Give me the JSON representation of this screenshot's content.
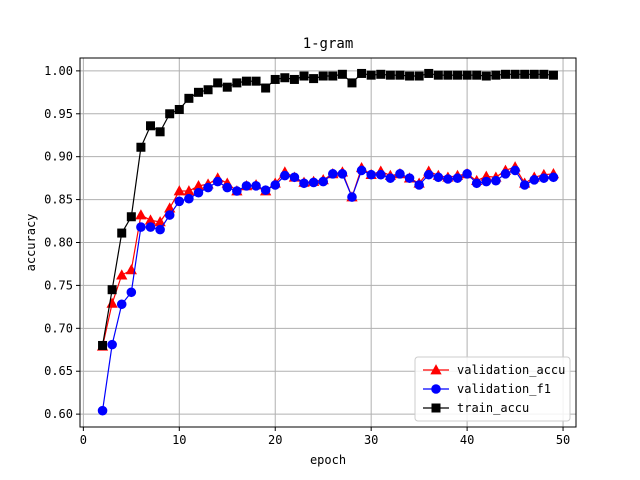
{
  "chart_data": {
    "type": "line",
    "title": "1-gram",
    "xlabel": "epoch",
    "ylabel": "accuracy",
    "xlim": [
      -0.35,
      51.35
    ],
    "ylim": [
      0.585,
      1.015
    ],
    "xticks": [
      0,
      10,
      20,
      30,
      40,
      50
    ],
    "yticks": [
      0.6,
      0.65,
      0.7,
      0.75,
      0.8,
      0.85,
      0.9,
      0.95,
      1.0
    ],
    "ytick_labels": [
      "0.60",
      "0.65",
      "0.70",
      "0.75",
      "0.80",
      "0.85",
      "0.90",
      "0.95",
      "1.00"
    ],
    "grid": true,
    "legend_position": "lower-right",
    "x": [
      2,
      3,
      4,
      5,
      6,
      7,
      8,
      9,
      10,
      11,
      12,
      13,
      14,
      15,
      16,
      17,
      18,
      19,
      20,
      21,
      22,
      23,
      24,
      25,
      26,
      27,
      28,
      29,
      30,
      31,
      32,
      33,
      34,
      35,
      36,
      37,
      38,
      39,
      40,
      41,
      42,
      43,
      44,
      45,
      46,
      47,
      48,
      49
    ],
    "series": [
      {
        "name": "validation_accu",
        "color": "#ff0000",
        "marker": "triangle",
        "values": [
          0.679,
          0.729,
          0.762,
          0.768,
          0.832,
          0.826,
          0.824,
          0.84,
          0.86,
          0.86,
          0.866,
          0.868,
          0.875,
          0.869,
          0.86,
          0.866,
          0.867,
          0.86,
          0.869,
          0.882,
          0.876,
          0.87,
          0.871,
          0.873,
          0.88,
          0.882,
          0.853,
          0.887,
          0.879,
          0.883,
          0.878,
          0.88,
          0.875,
          0.869,
          0.883,
          0.878,
          0.876,
          0.878,
          0.88,
          0.872,
          0.877,
          0.876,
          0.884,
          0.888,
          0.869,
          0.876,
          0.879,
          0.88
        ]
      },
      {
        "name": "validation_f1",
        "color": "#0000ff",
        "marker": "circle",
        "values": [
          0.604,
          0.681,
          0.728,
          0.742,
          0.818,
          0.818,
          0.815,
          0.832,
          0.848,
          0.851,
          0.858,
          0.864,
          0.871,
          0.864,
          0.86,
          0.866,
          0.866,
          0.861,
          0.867,
          0.878,
          0.876,
          0.869,
          0.87,
          0.871,
          0.88,
          0.88,
          0.853,
          0.884,
          0.879,
          0.879,
          0.875,
          0.88,
          0.875,
          0.867,
          0.879,
          0.876,
          0.874,
          0.875,
          0.88,
          0.869,
          0.871,
          0.872,
          0.88,
          0.884,
          0.867,
          0.873,
          0.875,
          0.876
        ]
      },
      {
        "name": "train_accu",
        "color": "#000000",
        "marker": "square",
        "values": [
          0.68,
          0.745,
          0.811,
          0.83,
          0.911,
          0.936,
          0.929,
          0.95,
          0.955,
          0.968,
          0.975,
          0.978,
          0.986,
          0.981,
          0.986,
          0.988,
          0.988,
          0.98,
          0.99,
          0.992,
          0.99,
          0.994,
          0.991,
          0.994,
          0.994,
          0.996,
          0.986,
          0.997,
          0.995,
          0.996,
          0.995,
          0.995,
          0.994,
          0.994,
          0.997,
          0.995,
          0.995,
          0.995,
          0.995,
          0.995,
          0.994,
          0.995,
          0.996,
          0.996,
          0.996,
          0.996,
          0.996,
          0.995
        ]
      }
    ]
  }
}
